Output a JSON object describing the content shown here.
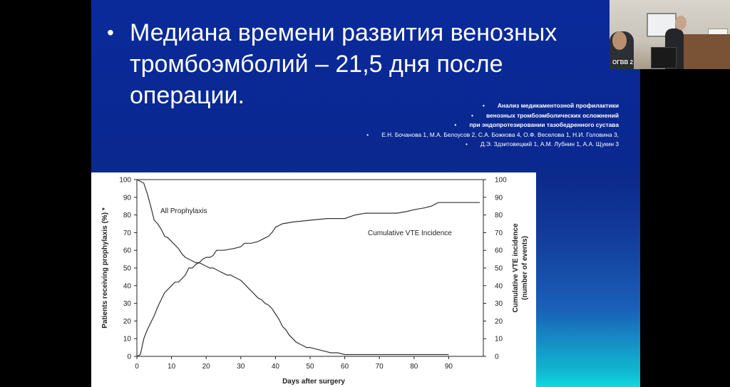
{
  "slide": {
    "bullet_symbol": "•",
    "bullet_text": "Медиана времени развития венозных тромбоэмболий – 21,5 дня после операции.",
    "references": [
      {
        "text": "Анализ медикаментозной профилактики",
        "bold": true
      },
      {
        "text": "венозных тромбоэмболических осложнений",
        "bold": true
      },
      {
        "text": "при эндопротезировании тазобедренного сустава",
        "bold": true
      },
      {
        "text": "Е.Н. Бочанова 1, М.А. Белоусов 2, С.А. Божкова 4, О.Ф. Веселова 1, Н.И. Головина 3,",
        "bold": false
      },
      {
        "text": "Д.Э. Здзитовецкий 1, А.М. Лубнин 1, А.А. Щукин 3",
        "bold": false
      }
    ]
  },
  "video_tile": {
    "label": "ОГВВ 2"
  },
  "chart_data": {
    "type": "line",
    "xlabel": "Days after surgery",
    "ylabel_left": "Patients receiving prophylaxis (%) *",
    "ylabel_right": "Cumulative VTE incidence (number of events)",
    "xlim": [
      0,
      100
    ],
    "ylim": [
      0,
      100
    ],
    "x_ticks": [
      0,
      10,
      20,
      30,
      40,
      50,
      60,
      70,
      80,
      90
    ],
    "y_ticks": [
      0,
      10,
      20,
      30,
      40,
      50,
      60,
      70,
      80,
      90,
      100
    ],
    "series": [
      {
        "name": "All Prophylaxis",
        "x": [
          0,
          1,
          2,
          3,
          4,
          5,
          6,
          7,
          8,
          9,
          10,
          11,
          12,
          13,
          14,
          15,
          16,
          17,
          18,
          19,
          20,
          21,
          22,
          23,
          24,
          25,
          26,
          27,
          28,
          29,
          30,
          31,
          32,
          33,
          34,
          35,
          36,
          37,
          38,
          39,
          40,
          41,
          42,
          43,
          44,
          45,
          46,
          47,
          48,
          49,
          50,
          52,
          54,
          56,
          58,
          60,
          65,
          70,
          75,
          80,
          85,
          90
        ],
        "values": [
          100,
          99,
          98,
          92,
          85,
          77,
          75,
          72,
          68,
          67,
          65,
          63,
          61,
          58,
          56,
          55,
          54,
          53,
          53,
          52,
          51,
          50,
          50,
          49,
          48,
          47,
          46,
          46,
          45,
          44,
          43,
          41,
          39,
          37,
          35,
          33,
          32,
          30,
          29,
          27,
          24,
          21,
          17,
          15,
          12,
          10,
          8,
          7,
          6,
          5,
          5,
          4,
          3,
          2,
          2,
          1,
          1,
          1,
          1,
          1,
          1,
          1
        ]
      },
      {
        "name": "Cumulative VTE Incidence",
        "x": [
          0,
          1,
          2,
          3,
          4,
          5,
          6,
          7,
          8,
          9,
          10,
          11,
          12,
          13,
          14,
          15,
          16,
          17,
          18,
          19,
          20,
          21,
          22,
          23,
          25,
          28,
          30,
          31,
          33,
          35,
          36,
          37,
          38,
          39,
          40,
          42,
          45,
          50,
          55,
          60,
          63,
          66,
          70,
          75,
          78,
          80,
          83,
          85,
          87,
          90,
          93,
          96,
          99
        ],
        "values": [
          0,
          1,
          10,
          15,
          19,
          23,
          28,
          32,
          36,
          38,
          40,
          42,
          42,
          44,
          46,
          50,
          50,
          52,
          53,
          55,
          56,
          56,
          57,
          60,
          60,
          61,
          62,
          64,
          64,
          65,
          66,
          67,
          68,
          70,
          73,
          75,
          76,
          77,
          78,
          78,
          80,
          81,
          81,
          81,
          82,
          83,
          84,
          85,
          87,
          87,
          87,
          87,
          87
        ]
      }
    ],
    "annotations": [
      "All Prophylaxis",
      "Cumulative VTE Incidence"
    ]
  }
}
